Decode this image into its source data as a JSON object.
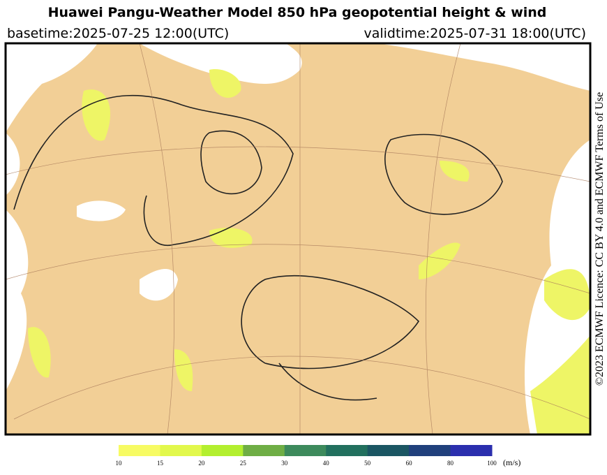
{
  "header": {
    "title": "Huawei Pangu-Weather Model 850 hPa geopotential height & wind",
    "basetime": "basetime:2025-07-25 12:00(UTC)",
    "validtime": "validtime:2025-07-31 18:00(UTC)"
  },
  "licence": "©2023 ECMWF Licence: CC BY 4.0 and ECMWF Terms of Use",
  "colorbar": {
    "ticks": [
      10,
      15,
      20,
      25,
      30,
      40,
      50,
      60,
      80,
      100
    ],
    "unit": "(m/s)",
    "colors": [
      "#f7fb63",
      "#e2f84c",
      "#b3ef2f",
      "#6fae45",
      "#3d8a5c",
      "#22705e",
      "#1b5663",
      "#20407c",
      "#2b2fae"
    ]
  }
}
